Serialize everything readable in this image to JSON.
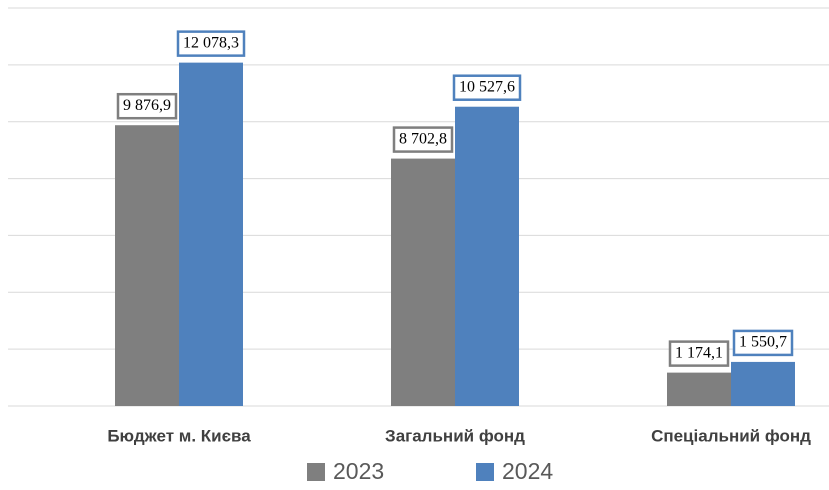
{
  "chart_data": {
    "type": "bar",
    "categories": [
      "Бюджет м. Києва",
      "Загальний фонд",
      "Спеціальний фонд"
    ],
    "series": [
      {
        "name": "2023",
        "color": "#7f7f7f",
        "values": [
          9876.9,
          8702.8,
          1174.1
        ],
        "value_labels": [
          "9 876,9",
          "8 702,8",
          "1 174,1"
        ]
      },
      {
        "name": "2024",
        "color": "#4f81bd",
        "values": [
          12078.3,
          10527.6,
          1550.7
        ],
        "value_labels": [
          "12 078,3",
          "10 527,6",
          "1 550,7"
        ]
      }
    ],
    "ylim": [
      0,
      14000
    ],
    "yticks": [
      0,
      2000,
      4000,
      6000,
      8000,
      10000,
      12000,
      14000
    ],
    "grid": true,
    "legend": "bottom"
  }
}
